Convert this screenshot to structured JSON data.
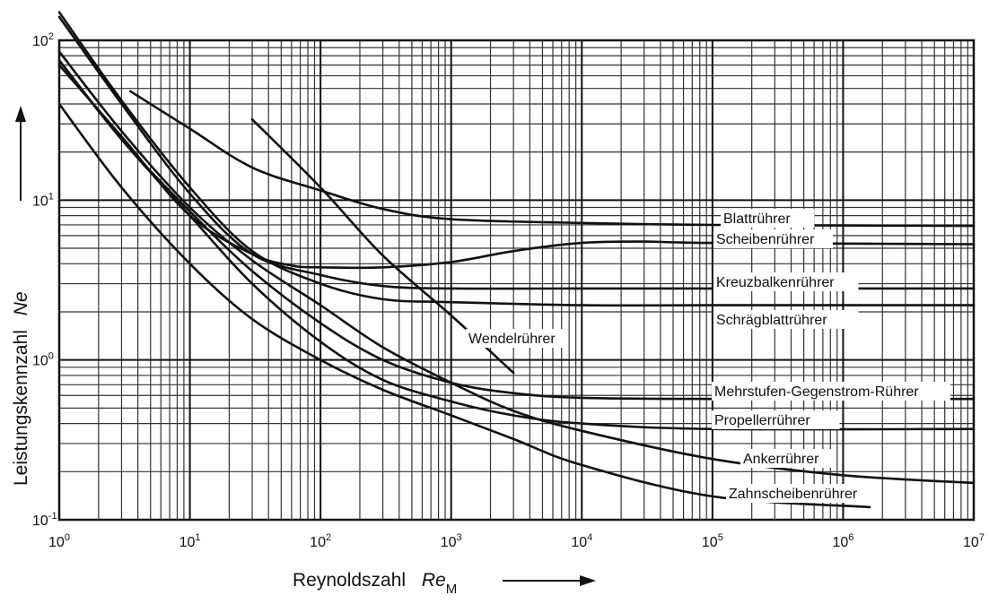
{
  "chart_data": {
    "type": "line",
    "title": "",
    "x_scale": "log",
    "y_scale": "log",
    "xlim": [
      1,
      10000000
    ],
    "ylim": [
      0.1,
      100
    ],
    "grid": true,
    "legend": "none",
    "line_color": "#111111",
    "xlabel": {
      "main": "Reynoldszahl",
      "symbol": "Re",
      "subscript": "M"
    },
    "ylabel": {
      "main": "Leistungskennzahl",
      "symbol": "Ne"
    },
    "x_ticks": [
      {
        "base": "10",
        "exp": "0"
      },
      {
        "base": "10",
        "exp": "1"
      },
      {
        "base": "10",
        "exp": "2"
      },
      {
        "base": "10",
        "exp": "3"
      },
      {
        "base": "10",
        "exp": "4"
      },
      {
        "base": "10",
        "exp": "5"
      },
      {
        "base": "10",
        "exp": "6"
      },
      {
        "base": "10",
        "exp": "7"
      }
    ],
    "y_ticks": [
      {
        "base": "10",
        "exp": "-1"
      },
      {
        "base": "10",
        "exp": "0"
      },
      {
        "base": "10",
        "exp": "1"
      },
      {
        "base": "10",
        "exp": "2"
      }
    ],
    "series": [
      {
        "name": "Blattrührer",
        "x": [
          3.5,
          10,
          30,
          100,
          300,
          1000,
          10000,
          100000,
          10000000
        ],
        "y": [
          48,
          28,
          16,
          11.5,
          8.8,
          7.6,
          7.2,
          7.0,
          6.9
        ]
      },
      {
        "name": "Scheibenrührer",
        "x": [
          1,
          3,
          10,
          30,
          60,
          100,
          300,
          1000,
          3000,
          10000,
          30000,
          100000,
          10000000
        ],
        "y": [
          70,
          25,
          8,
          4.6,
          3.9,
          3.8,
          3.8,
          4.1,
          4.8,
          5.4,
          5.5,
          5.4,
          5.3
        ]
      },
      {
        "name": "Kreuzbalkenrührer",
        "x": [
          1,
          3,
          10,
          30,
          100,
          300,
          1000,
          10000,
          100000,
          10000000
        ],
        "y": [
          140,
          40,
          11,
          4.6,
          3.4,
          2.9,
          2.8,
          2.8,
          2.8,
          2.8
        ]
      },
      {
        "name": "Schrägblattrührer",
        "x": [
          1,
          3,
          10,
          30,
          100,
          300,
          1000,
          10000,
          100000,
          10000000
        ],
        "y": [
          150,
          42,
          12,
          4.8,
          3.0,
          2.4,
          2.3,
          2.2,
          2.2,
          2.2
        ]
      },
      {
        "name": "Wendelrührer",
        "x": [
          30,
          100,
          300,
          1000,
          3000
        ],
        "y": [
          32,
          12,
          4.5,
          1.9,
          0.83
        ]
      },
      {
        "name": "Mehrstufen-Gegenstrom-Rührer",
        "x": [
          1,
          3,
          10,
          30,
          100,
          300,
          1000,
          3000,
          10000,
          100000,
          10000000
        ],
        "y": [
          75,
          24,
          8.5,
          3.6,
          1.7,
          1.0,
          0.72,
          0.62,
          0.58,
          0.57,
          0.57
        ]
      },
      {
        "name": "Propellerrührer",
        "x": [
          1,
          3,
          10,
          30,
          100,
          300,
          1000,
          3000,
          10000,
          100000,
          10000000
        ],
        "y": [
          75,
          24,
          8.0,
          3.0,
          1.3,
          0.75,
          0.55,
          0.45,
          0.4,
          0.37,
          0.37
        ]
      },
      {
        "name": "Ankerrührer",
        "x": [
          1,
          3,
          10,
          30,
          100,
          300,
          1000,
          3000,
          10000,
          100000,
          1000000,
          10000000
        ],
        "y": [
          85,
          27,
          9.0,
          4.2,
          2.2,
          1.2,
          0.72,
          0.48,
          0.36,
          0.24,
          0.19,
          0.17
        ]
      },
      {
        "name": "Zahnscheibenrührer",
        "x": [
          1,
          3,
          10,
          30,
          100,
          300,
          1000,
          3000,
          10000,
          100000,
          1600000
        ],
        "y": [
          40,
          12,
          4.0,
          1.8,
          1.0,
          0.65,
          0.45,
          0.32,
          0.22,
          0.14,
          0.12
        ]
      }
    ]
  }
}
